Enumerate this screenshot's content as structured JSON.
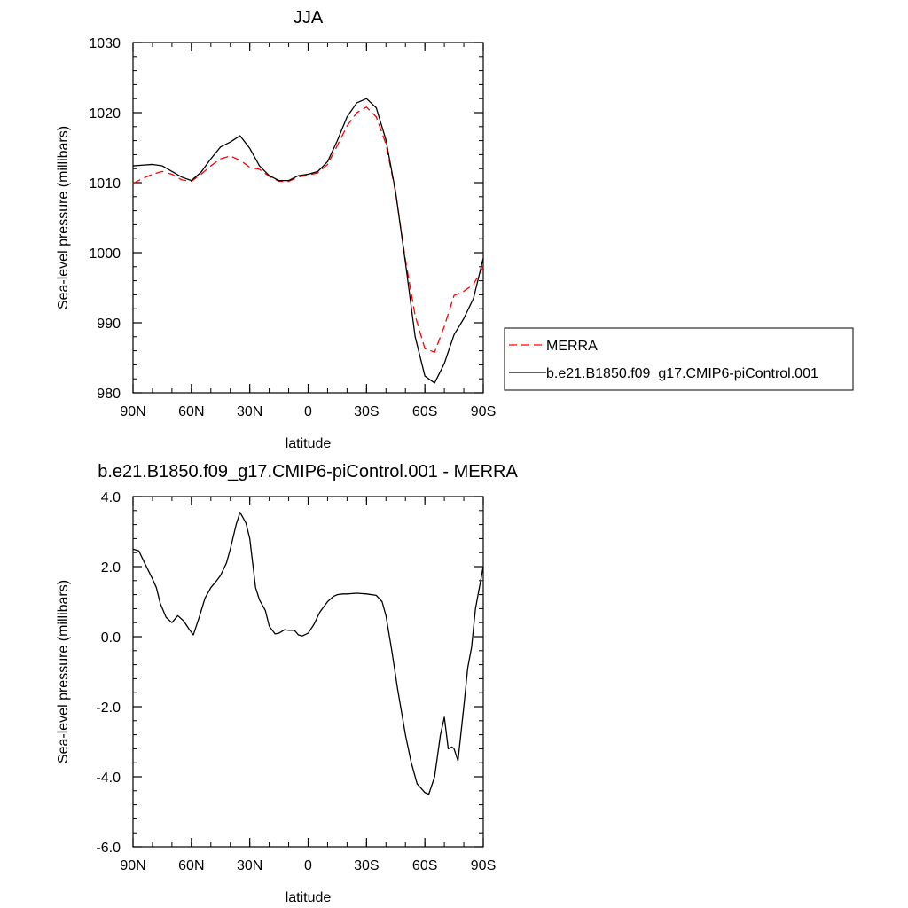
{
  "chart_data": [
    {
      "type": "line",
      "title": "JJA",
      "xlabel": "latitude",
      "ylabel": "Sea-level pressure (millibars)",
      "xlim": [
        90,
        -90
      ],
      "ylim": [
        980,
        1030
      ],
      "x_ticks": [
        {
          "value": 90,
          "label": "90N"
        },
        {
          "value": 60,
          "label": "60N"
        },
        {
          "value": 30,
          "label": "30N"
        },
        {
          "value": 0,
          "label": "0"
        },
        {
          "value": -30,
          "label": "30S"
        },
        {
          "value": -60,
          "label": "60S"
        },
        {
          "value": -90,
          "label": "90S"
        }
      ],
      "y_ticks": [
        {
          "value": 980,
          "label": "980"
        },
        {
          "value": 990,
          "label": "990"
        },
        {
          "value": 1000,
          "label": "1000"
        },
        {
          "value": 1010,
          "label": "1010"
        },
        {
          "value": 1020,
          "label": "1020"
        },
        {
          "value": 1030,
          "label": "1030"
        }
      ],
      "legend": "outside-right",
      "series": [
        {
          "name": "MERRA",
          "color": "#ff0000",
          "dash": "dashed",
          "x": [
            90,
            85,
            80,
            75,
            70,
            65,
            60,
            55,
            50,
            45,
            40,
            35,
            30,
            25,
            20,
            15,
            10,
            5,
            0,
            -5,
            -10,
            -15,
            -20,
            -25,
            -30,
            -35,
            -40,
            -45,
            -50,
            -55,
            -60,
            -65,
            -70,
            -75,
            -80,
            -85,
            -90
          ],
          "y": [
            1009.9,
            1010.6,
            1011.2,
            1011.6,
            1011.2,
            1010.4,
            1010.2,
            1011.2,
            1012.4,
            1013.4,
            1013.8,
            1013.2,
            1012.2,
            1011.9,
            1010.9,
            1010.2,
            1010.2,
            1010.8,
            1011.1,
            1011.4,
            1012.6,
            1015.3,
            1018.1,
            1020.0,
            1020.8,
            1019.4,
            1015.5,
            1008.5,
            999.0,
            991.0,
            986.3,
            985.8,
            989.5,
            993.9,
            994.5,
            995.5,
            998.0
          ]
        },
        {
          "name": "b.e21.B1850.f09_g17.CMIP6-piControl.001",
          "color": "#000000",
          "dash": "solid",
          "x": [
            90,
            85,
            80,
            75,
            70,
            65,
            60,
            55,
            50,
            45,
            40,
            35,
            30,
            25,
            20,
            15,
            10,
            5,
            0,
            -5,
            -10,
            -15,
            -20,
            -25,
            -30,
            -35,
            -40,
            -45,
            -50,
            -55,
            -60,
            -65,
            -70,
            -75,
            -80,
            -85,
            -90
          ],
          "y": [
            1012.4,
            1012.5,
            1012.6,
            1012.4,
            1011.6,
            1010.8,
            1010.3,
            1011.5,
            1013.4,
            1015.1,
            1015.8,
            1016.7,
            1014.9,
            1012.4,
            1011.0,
            1010.3,
            1010.3,
            1011.0,
            1011.2,
            1011.6,
            1013.0,
            1016.0,
            1019.4,
            1021.4,
            1022.0,
            1020.7,
            1016.1,
            1008.6,
            998.6,
            988.0,
            982.4,
            981.4,
            984.2,
            988.3,
            990.6,
            993.5,
            999.2
          ]
        }
      ]
    },
    {
      "type": "line",
      "title": "b.e21.B1850.f09_g17.CMIP6-piControl.001 - MERRA",
      "xlabel": "latitude",
      "ylabel": "Sea-level pressure (millibars)",
      "xlim": [
        90,
        -90
      ],
      "ylim": [
        -6,
        4
      ],
      "x_ticks": [
        {
          "value": 90,
          "label": "90N"
        },
        {
          "value": 60,
          "label": "60N"
        },
        {
          "value": 30,
          "label": "30N"
        },
        {
          "value": 0,
          "label": "0"
        },
        {
          "value": -30,
          "label": "30S"
        },
        {
          "value": -60,
          "label": "60S"
        },
        {
          "value": -90,
          "label": "90S"
        }
      ],
      "y_ticks": [
        {
          "value": -6,
          "label": "-6.0"
        },
        {
          "value": -4,
          "label": "-4.0"
        },
        {
          "value": -2,
          "label": "-2.0"
        },
        {
          "value": 0,
          "label": "0.0"
        },
        {
          "value": 2,
          "label": "2.0"
        },
        {
          "value": 4,
          "label": "4.0"
        }
      ],
      "series": [
        {
          "name": "",
          "color": "#000000",
          "dash": "solid",
          "x": [
            90,
            87,
            84,
            80,
            78,
            76,
            73,
            70,
            67,
            64,
            61,
            59,
            56,
            53,
            50,
            47,
            45,
            42,
            40,
            37,
            35,
            32,
            30,
            27,
            25,
            22,
            20,
            17,
            15,
            12,
            10,
            7,
            5,
            3,
            0,
            -3,
            -6,
            -10,
            -13,
            -15,
            -18,
            -20,
            -25,
            -30,
            -35,
            -38,
            -40,
            -43,
            -46,
            -50,
            -53,
            -56,
            -60,
            -62,
            -65,
            -68,
            -70,
            -72,
            -74,
            -75,
            -77,
            -80,
            -82,
            -84,
            -86,
            -88,
            -90
          ],
          "y": [
            2.5,
            2.45,
            2.1,
            1.65,
            1.4,
            0.95,
            0.55,
            0.4,
            0.6,
            0.45,
            0.2,
            0.05,
            0.55,
            1.1,
            1.4,
            1.6,
            1.75,
            2.1,
            2.5,
            3.2,
            3.55,
            3.25,
            2.8,
            1.4,
            1.05,
            0.75,
            0.3,
            0.08,
            0.1,
            0.2,
            0.18,
            0.18,
            0.05,
            0.02,
            0.1,
            0.35,
            0.7,
            1.0,
            1.15,
            1.2,
            1.22,
            1.22,
            1.24,
            1.22,
            1.18,
            1.0,
            0.6,
            -0.4,
            -1.5,
            -2.8,
            -3.6,
            -4.2,
            -4.45,
            -4.5,
            -4.0,
            -2.8,
            -2.3,
            -3.2,
            -3.15,
            -3.2,
            -3.55,
            -2.0,
            -0.9,
            -0.3,
            0.8,
            1.4,
            2.0
          ]
        }
      ]
    }
  ]
}
